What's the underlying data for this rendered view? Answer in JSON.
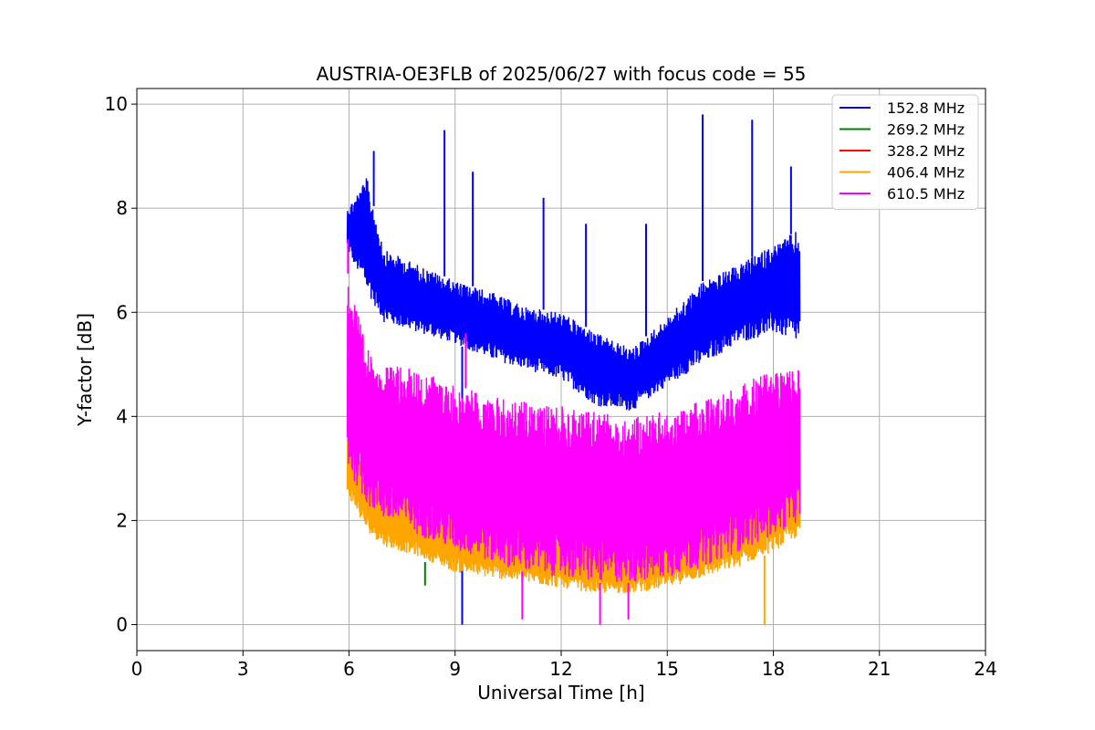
{
  "chart_data": {
    "type": "line",
    "title": "AUSTRIA-OE3FLB of 2025/06/27 with focus code = 55",
    "xlabel": "Universal Time [h]",
    "ylabel": "Y-factor [dB]",
    "xlim": [
      0,
      24
    ],
    "ylim": [
      -0.5,
      10.3
    ],
    "xticks": [
      0,
      3,
      6,
      9,
      12,
      15,
      18,
      21,
      24
    ],
    "yticks": [
      0,
      2,
      4,
      6,
      8,
      10
    ],
    "xtick_labels": [
      "0",
      "3",
      "6",
      "9",
      "12",
      "15",
      "18",
      "21",
      "24"
    ],
    "ytick_labels": [
      "0",
      "2",
      "4",
      "6",
      "8",
      "10"
    ],
    "grid": true,
    "legend_position": "top-right",
    "legend": [
      {
        "label": "152.8 MHz",
        "color": "#0000ff"
      },
      {
        "label": "269.2 MHz",
        "color": "#008000"
      },
      {
        "label": "328.2 MHz",
        "color": "#ff0000"
      },
      {
        "label": "406.4 MHz",
        "color": "#ffa500"
      },
      {
        "label": "610.5 MHz",
        "color": "#ff00ff"
      }
    ],
    "series": [
      {
        "name": "152.8 MHz",
        "color": "#0000ff",
        "x": [
          5.95,
          6.5,
          7.0,
          8.0,
          9.0,
          10.0,
          11.0,
          12.0,
          13.0,
          14.0,
          15.0,
          16.0,
          17.0,
          18.0,
          18.75
        ],
        "low": [
          7.2,
          6.4,
          5.8,
          5.6,
          5.4,
          5.1,
          4.9,
          4.7,
          4.2,
          4.1,
          4.6,
          5.0,
          5.4,
          5.6,
          5.4
        ],
        "high": [
          8.0,
          8.6,
          7.2,
          6.9,
          6.6,
          6.4,
          6.1,
          6.0,
          5.6,
          5.3,
          5.9,
          6.6,
          6.9,
          7.3,
          7.6
        ],
        "spikes": [
          [
            6.7,
            9.1
          ],
          [
            8.7,
            9.5
          ],
          [
            9.5,
            8.7
          ],
          [
            11.5,
            8.2
          ],
          [
            12.7,
            7.7
          ],
          [
            14.4,
            7.7
          ],
          [
            16.0,
            9.8
          ],
          [
            17.4,
            9.7
          ],
          [
            18.5,
            8.8
          ],
          [
            9.2,
            0.0
          ]
        ]
      },
      {
        "name": "269.2 MHz",
        "color": "#008000",
        "x": [
          8.15
        ],
        "low": [
          0.75
        ],
        "high": [
          1.2
        ],
        "spikes": []
      },
      {
        "name": "328.2 MHz",
        "color": "#ff0000",
        "x": [],
        "low": [],
        "high": [],
        "spikes": []
      },
      {
        "name": "406.4 MHz",
        "color": "#ffa500",
        "x": [
          5.95,
          6.5,
          7.0,
          8.0,
          9.0,
          10.0,
          11.0,
          12.0,
          13.0,
          14.0,
          15.0,
          16.0,
          17.0,
          18.0,
          18.75
        ],
        "low": [
          2.5,
          1.8,
          1.5,
          1.3,
          1.0,
          0.9,
          0.8,
          0.7,
          0.6,
          0.6,
          0.7,
          0.9,
          1.1,
          1.4,
          1.7
        ],
        "high": [
          3.8,
          3.0,
          2.7,
          2.4,
          2.2,
          2.0,
          1.9,
          1.8,
          1.7,
          1.7,
          1.9,
          2.1,
          2.4,
          2.8,
          3.0
        ],
        "spikes": [
          [
            17.75,
            0.0
          ]
        ]
      },
      {
        "name": "610.5 MHz",
        "color": "#ff00ff",
        "x": [
          5.95,
          6.5,
          7.0,
          8.0,
          9.0,
          10.0,
          11.0,
          12.0,
          13.0,
          14.0,
          15.0,
          16.0,
          17.0,
          18.0,
          18.75
        ],
        "low": [
          3.0,
          2.3,
          2.0,
          1.7,
          1.4,
          1.2,
          1.0,
          0.9,
          0.8,
          0.8,
          0.9,
          1.1,
          1.4,
          1.7,
          2.0
        ],
        "high": [
          6.8,
          5.3,
          5.0,
          4.9,
          4.6,
          4.4,
          4.3,
          4.2,
          4.1,
          4.0,
          4.1,
          4.3,
          4.6,
          4.9,
          5.0
        ],
        "spikes": [
          [
            5.97,
            7.4
          ],
          [
            9.3,
            5.6
          ],
          [
            10.9,
            0.1
          ],
          [
            13.1,
            0.0
          ],
          [
            13.9,
            0.1
          ]
        ]
      }
    ]
  }
}
